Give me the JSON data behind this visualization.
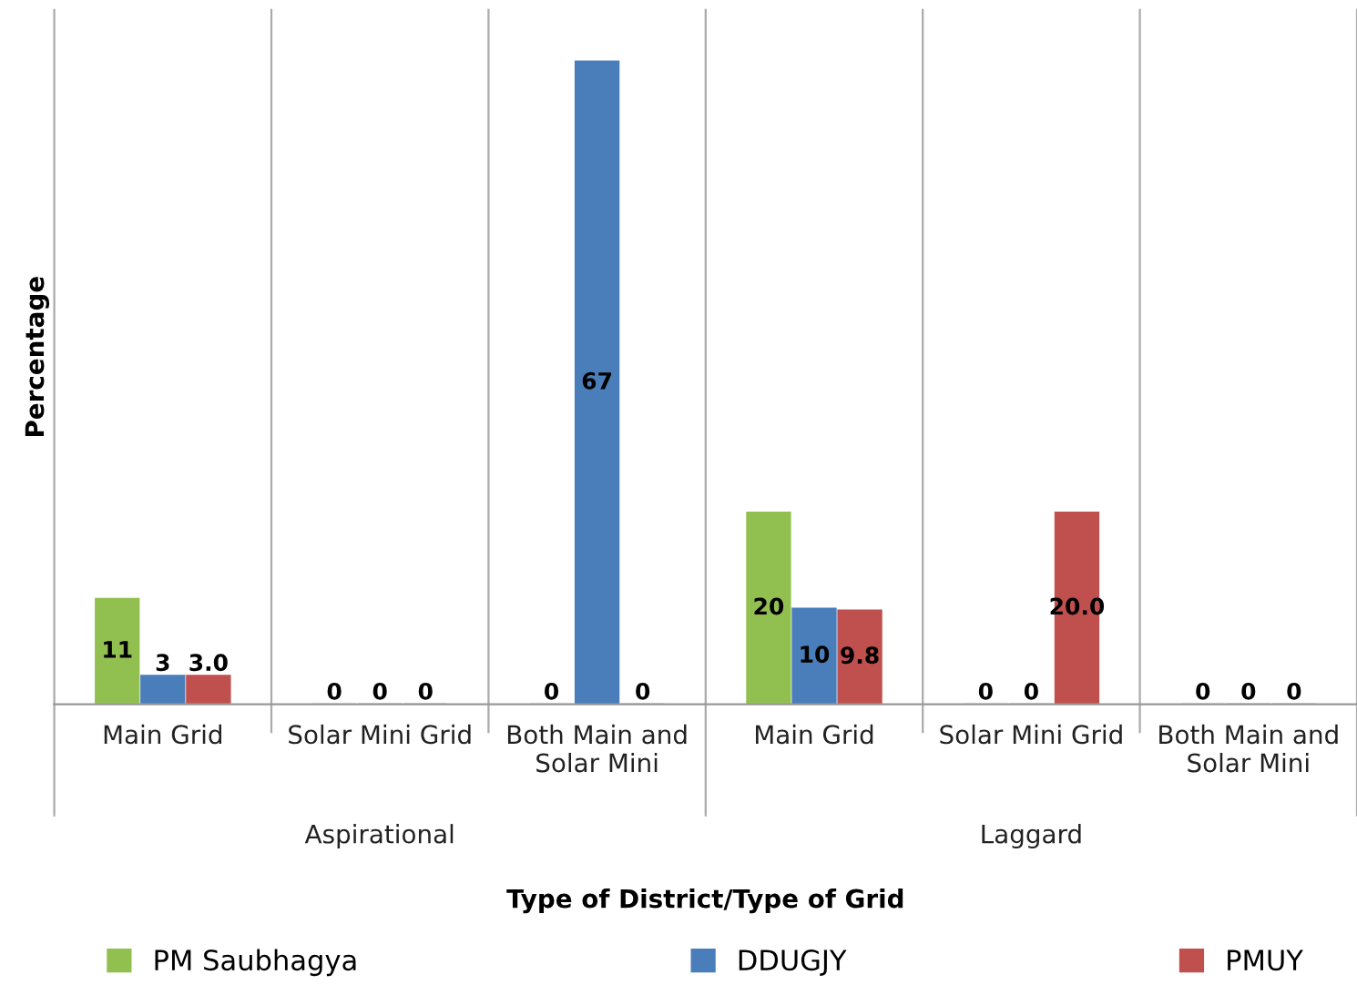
{
  "chart_data": {
    "type": "bar",
    "xlabel": "Type of District/Type of Grid",
    "ylabel": "Percentage",
    "categories": [
      "Main Grid",
      "Solar Mini Grid",
      "Both Main and\nSolar Mini",
      "Main Grid",
      "Solar Mini Grid",
      "Both Main and\nSolar Mini"
    ],
    "annotations": [
      "Aspirational",
      "Laggard"
    ],
    "series": [
      {
        "name": "PM Saubhagya",
        "color": "#92c050",
        "values": [
          11,
          0,
          0,
          20,
          0,
          0
        ],
        "value_labels": [
          "11",
          "0",
          "0",
          "20",
          "0",
          "0"
        ]
      },
      {
        "name": "DDUGJY",
        "color": "#4a7ebb",
        "values": [
          3,
          0,
          67,
          10,
          0,
          0
        ],
        "value_labels": [
          "3",
          "0",
          "67",
          "10",
          "0",
          "0"
        ]
      },
      {
        "name": "PMUY",
        "color": "#c0504d",
        "values": [
          3.0,
          0,
          0,
          9.8,
          20.0,
          0
        ],
        "value_labels": [
          "3.0",
          "0",
          "0",
          "9.8",
          "20.0",
          "0"
        ]
      }
    ],
    "grid": false,
    "legend": "bottom"
  }
}
